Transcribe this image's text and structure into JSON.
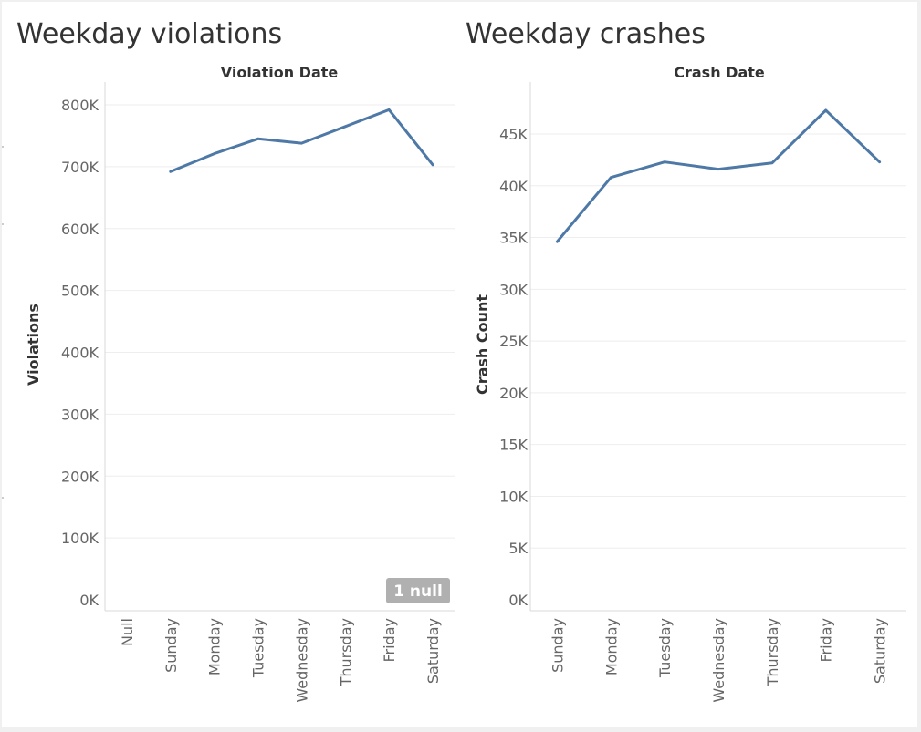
{
  "chart_data": [
    {
      "type": "line",
      "title": "Weekday violations",
      "column_header": "Violation Date",
      "ylabel": "Violations",
      "categories": [
        "Null",
        "Sunday",
        "Monday",
        "Tuesday",
        "Wednesday",
        "Thursday",
        "Friday",
        "Saturday"
      ],
      "series": [
        {
          "values": [
            null,
            692000,
            721000,
            745000,
            738000,
            765000,
            792000,
            703000
          ]
        }
      ],
      "ylim": [
        0,
        830000
      ],
      "ticks": [
        {
          "value": 0,
          "label": "0K"
        },
        {
          "value": 100000,
          "label": "100K"
        },
        {
          "value": 200000,
          "label": "200K"
        },
        {
          "value": 300000,
          "label": "300K"
        },
        {
          "value": 400000,
          "label": "400K"
        },
        {
          "value": 500000,
          "label": "500K"
        },
        {
          "value": 600000,
          "label": "600K"
        },
        {
          "value": 700000,
          "label": "700K"
        },
        {
          "value": 800000,
          "label": "800K"
        }
      ],
      "grid": true,
      "annotation": "1 null",
      "color": "#4e79a7"
    },
    {
      "type": "line",
      "title": "Weekday crashes",
      "column_header": "Crash Date",
      "ylabel": "Crash Count",
      "categories": [
        "Sunday",
        "Monday",
        "Tuesday",
        "Wednesday",
        "Thursday",
        "Friday",
        "Saturday"
      ],
      "series": [
        {
          "values": [
            34600,
            40800,
            42300,
            41600,
            42200,
            47300,
            42300
          ]
        }
      ],
      "ylim": [
        0,
        47800
      ],
      "ticks": [
        {
          "value": 0,
          "label": "0K"
        },
        {
          "value": 5000,
          "label": "5K"
        },
        {
          "value": 10000,
          "label": "10K"
        },
        {
          "value": 15000,
          "label": "15K"
        },
        {
          "value": 20000,
          "label": "20K"
        },
        {
          "value": 25000,
          "label": "25K"
        },
        {
          "value": 30000,
          "label": "30K"
        },
        {
          "value": 35000,
          "label": "35K"
        },
        {
          "value": 40000,
          "label": "40K"
        },
        {
          "value": 45000,
          "label": "45K"
        }
      ],
      "grid": true,
      "color": "#4e79a7"
    }
  ]
}
